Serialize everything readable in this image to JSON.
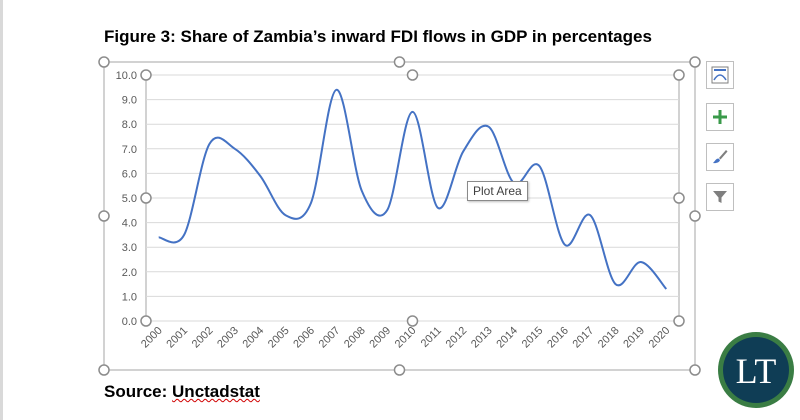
{
  "page": {
    "title": "Figure 3: Share of Zambia’s inward FDI flows in GDP in percentages",
    "source_label": "Source: ",
    "source_value": "Unctadstat"
  },
  "tooltip": {
    "text": "Plot Area"
  },
  "side_buttons": [
    {
      "name": "chart-layout-button",
      "icon": "layout-icon"
    },
    {
      "name": "chart-elements-button",
      "icon": "plus-icon"
    },
    {
      "name": "chart-styles-button",
      "icon": "paintbrush-icon"
    },
    {
      "name": "chart-filters-button",
      "icon": "filter-icon"
    }
  ],
  "logo": {
    "text": "LT",
    "colors": {
      "ring": "#3a7d44",
      "fill": "#0f3d55",
      "text": "#ffffff"
    }
  },
  "colors": {
    "line": "#4472c4",
    "grid": "#d9d9d9",
    "axis_text": "#595959",
    "handle": "#8c8c8c",
    "frame": "#a6a6a6",
    "accent": "#3a9a4a"
  },
  "chart_data": {
    "type": "line",
    "smooth": true,
    "categories": [
      "2000",
      "2001",
      "2002",
      "2003",
      "2004",
      "2005",
      "2006",
      "2007",
      "2008",
      "2009",
      "2010",
      "2011",
      "2012",
      "2013",
      "2014",
      "2015",
      "2016",
      "2017",
      "2018",
      "2019",
      "2020"
    ],
    "values": [
      3.4,
      3.5,
      7.2,
      7.0,
      5.9,
      4.3,
      4.8,
      9.4,
      5.3,
      4.5,
      8.5,
      4.6,
      6.9,
      7.9,
      5.6,
      6.3,
      3.1,
      4.3,
      1.5,
      2.4,
      1.3
    ],
    "ylim": [
      0,
      10
    ],
    "yticks": [
      "0.0",
      "1.0",
      "2.0",
      "3.0",
      "4.0",
      "5.0",
      "6.0",
      "7.0",
      "8.0",
      "9.0",
      "10.0"
    ],
    "grid": true,
    "legend": "none"
  }
}
